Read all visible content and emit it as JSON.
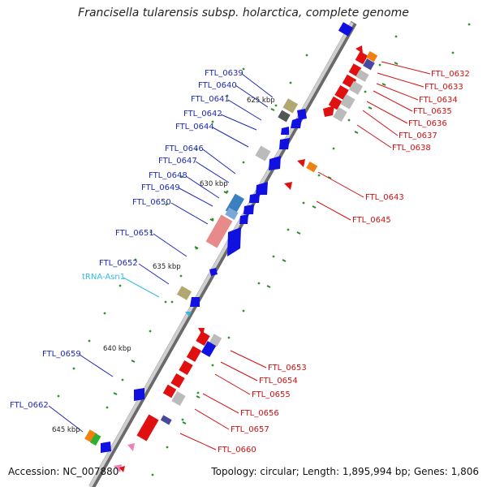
{
  "title": "Francisella tularensis subsp. holarctica, complete genome",
  "footer": {
    "accession": "Accession: NC_007880",
    "topology": "Topology: circular; Length: 1,895,994 bp; Genes: 1,806"
  },
  "ruler": [
    "625 kbp",
    "630 kbp",
    "635 kbp",
    "640 kbp",
    "645 kbp"
  ],
  "left_labels": [
    "FTL_0639",
    "FTL_0640",
    "FTL_0641",
    "FTL_0642",
    "FTL_0644",
    "FTL_0646",
    "FTL_0647",
    "FTL_0648",
    "FTL_0649",
    "FTL_0650",
    "FTL_0651",
    "FTL_0652",
    "FTL_0659",
    "FTL_0662"
  ],
  "trna_label": "tRNA-Asn1",
  "right_labels": [
    "FTL_0632",
    "FTL_0633",
    "FTL_0634",
    "FTL_0635",
    "FTL_0636",
    "FTL_0637",
    "FTL_0638",
    "FTL_0643",
    "FTL_0645",
    "FTL_0653",
    "FTL_0654",
    "FTL_0655",
    "FTL_0656",
    "FTL_0657",
    "FTL_0660"
  ],
  "colors": {
    "forward_gene": "#e01010",
    "reverse_gene": "#1010e0",
    "left_label": "#1e2ab4",
    "right_label": "#d01010",
    "trna": "#34b9e0",
    "backbone": "#777777"
  }
}
